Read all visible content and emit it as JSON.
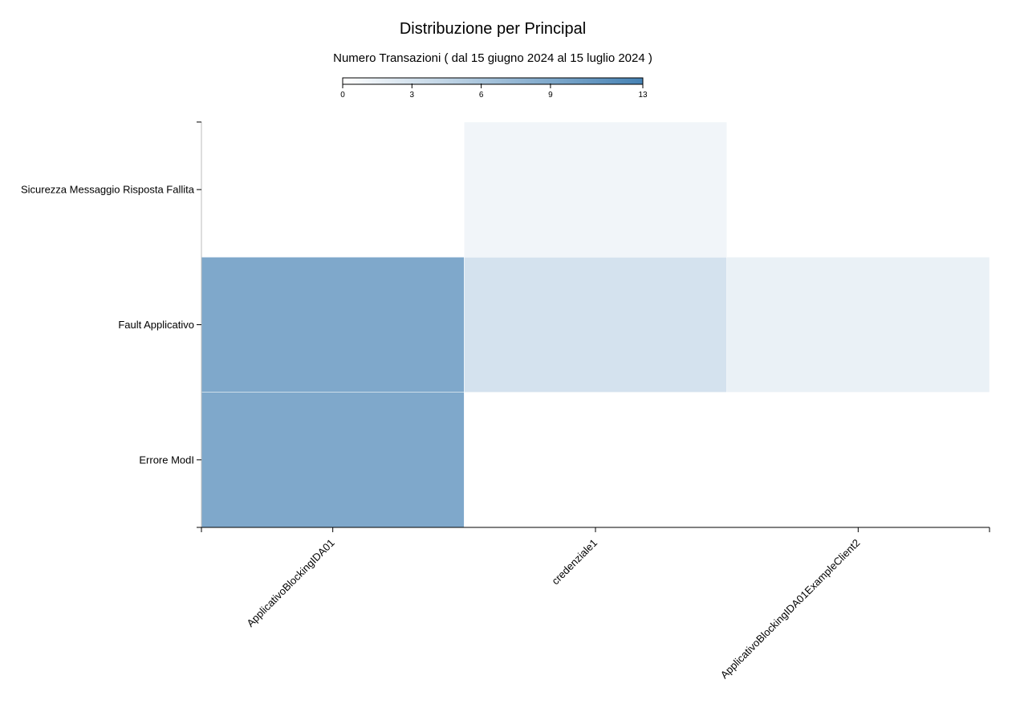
{
  "chart_data": {
    "type": "heatmap",
    "title": "Distribuzione per Principal",
    "subtitle": "Numero Transazioni ( dal 15 giugno 2024 al 15 luglio 2024 )",
    "x_categories": [
      "ApplicativoBlockingIDA01",
      "credenziale1",
      "ApplicativoBlockingIDA01ExampleClient2"
    ],
    "y_categories": [
      "Sicurezza Messaggio Risposta Fallita",
      "Fault Applicativo",
      "Errore ModI"
    ],
    "cells": [
      {
        "x": "credenziale1",
        "y": "Sicurezza Messaggio Risposta Fallita",
        "value": 1
      },
      {
        "x": "ApplicativoBlockingIDA01",
        "y": "Fault Applicativo",
        "value": 9
      },
      {
        "x": "credenziale1",
        "y": "Fault Applicativo",
        "value": 3
      },
      {
        "x": "ApplicativoBlockingIDA01ExampleClient2",
        "y": "Fault Applicativo",
        "value": 1.5
      },
      {
        "x": "ApplicativoBlockingIDA01",
        "y": "Errore ModI",
        "value": 9
      }
    ],
    "color_scale": {
      "min": 0,
      "max": 13,
      "min_color": "#ffffff",
      "max_color": "#4682b4",
      "ticks": [
        "0",
        "3",
        "6",
        "9",
        "13"
      ],
      "tick_values": [
        0,
        3,
        6,
        9,
        13
      ]
    },
    "legend_position": "top-center",
    "grid": false
  }
}
